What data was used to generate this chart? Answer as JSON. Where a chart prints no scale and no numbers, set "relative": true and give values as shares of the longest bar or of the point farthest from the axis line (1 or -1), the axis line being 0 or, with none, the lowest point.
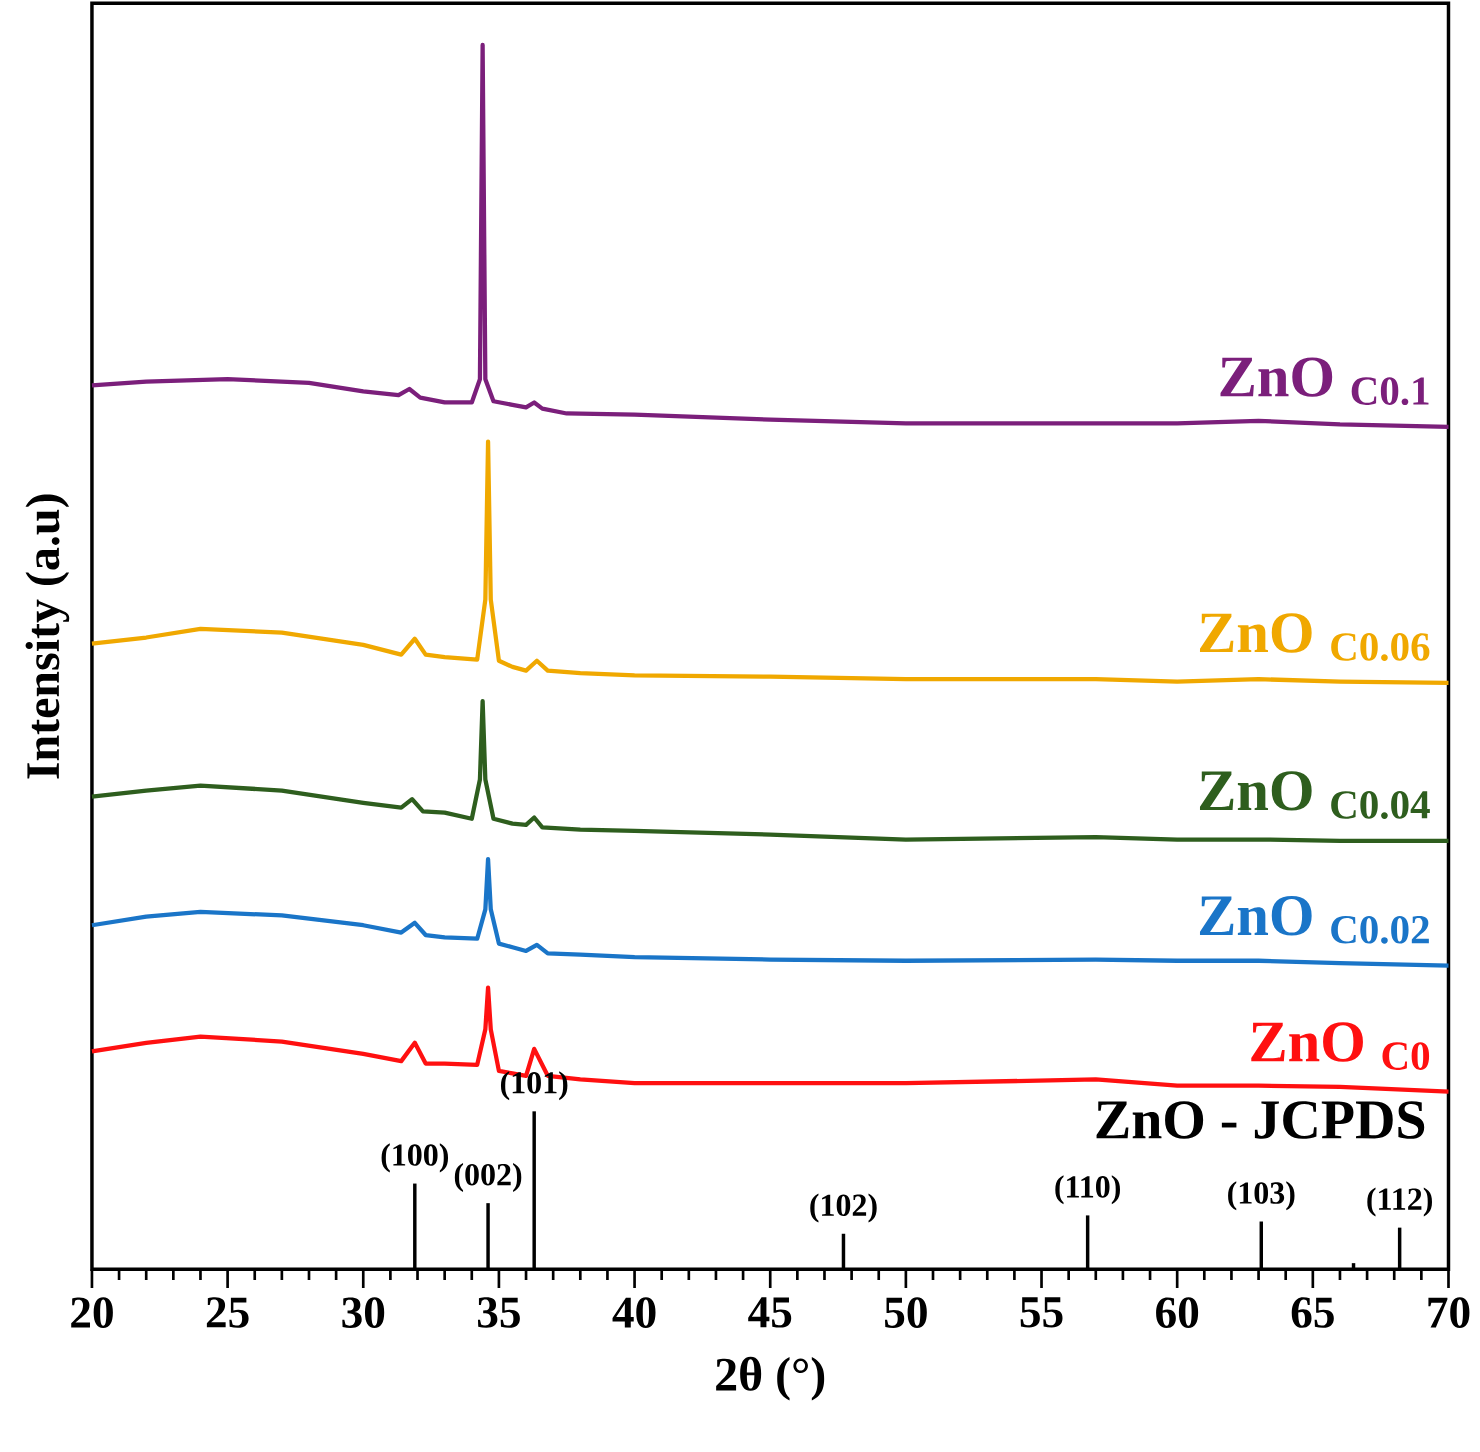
{
  "chart_data": {
    "type": "line",
    "relative": true,
    "xlabel": "2θ (°)",
    "ylabel": "Intensity (a.u)",
    "xlim": [
      20,
      70
    ],
    "xticks": [
      20,
      25,
      30,
      35,
      40,
      45,
      50,
      55,
      60,
      65,
      70
    ],
    "legend": false,
    "grid": false,
    "marker": "none",
    "line_style": "solid",
    "series": [
      {
        "name": "ZnO $_{C0.1}$",
        "color": "#7b1f7b",
        "x": [
          20,
          22,
          25,
          28,
          30,
          31.3,
          31.7,
          32.1,
          33,
          34.0,
          34.3,
          34.4,
          34.5,
          34.8,
          35.5,
          36.0,
          36.3,
          36.6,
          37.5,
          40,
          45,
          50,
          57,
          60,
          63,
          66,
          70
        ],
        "values": [
          0.722,
          0.725,
          0.727,
          0.724,
          0.717,
          0.714,
          0.719,
          0.712,
          0.708,
          0.708,
          0.727,
          1.0,
          0.727,
          0.709,
          0.706,
          0.704,
          0.708,
          0.703,
          0.699,
          0.698,
          0.694,
          0.691,
          0.691,
          0.691,
          0.693,
          0.69,
          0.688
        ]
      },
      {
        "name": "ZnO $_{C0.06}$",
        "color": "#f0a800",
        "x": [
          20,
          22,
          24,
          27,
          30,
          31.4,
          31.9,
          32.3,
          33,
          34.2,
          34.5,
          34.6,
          34.7,
          35.0,
          35.5,
          36.0,
          36.4,
          36.8,
          38,
          40,
          45,
          50,
          57,
          60,
          63,
          66,
          70
        ],
        "values": [
          0.511,
          0.516,
          0.523,
          0.52,
          0.51,
          0.502,
          0.515,
          0.502,
          0.5,
          0.498,
          0.547,
          0.676,
          0.547,
          0.497,
          0.492,
          0.489,
          0.497,
          0.489,
          0.487,
          0.485,
          0.484,
          0.482,
          0.482,
          0.48,
          0.482,
          0.48,
          0.479
        ]
      },
      {
        "name": "ZnO $_{C0.04}$",
        "color": "#2e5e1e",
        "x": [
          20,
          22,
          24,
          27,
          30,
          31.4,
          31.8,
          32.2,
          33,
          34.0,
          34.3,
          34.4,
          34.5,
          34.8,
          35.5,
          36.0,
          36.3,
          36.6,
          38,
          40,
          45,
          50,
          57,
          60,
          63,
          66,
          70
        ],
        "values": [
          0.386,
          0.391,
          0.395,
          0.391,
          0.381,
          0.377,
          0.384,
          0.374,
          0.373,
          0.368,
          0.4,
          0.464,
          0.4,
          0.368,
          0.364,
          0.363,
          0.369,
          0.361,
          0.359,
          0.358,
          0.355,
          0.351,
          0.353,
          0.351,
          0.351,
          0.35,
          0.35
        ]
      },
      {
        "name": "ZnO $_{C0.02}$",
        "color": "#1a75c8",
        "x": [
          20,
          22,
          24,
          27,
          30,
          31.4,
          31.9,
          32.3,
          33,
          34.2,
          34.5,
          34.6,
          34.7,
          35.0,
          35.5,
          36.0,
          36.4,
          36.8,
          38,
          40,
          45,
          50,
          57,
          60,
          63,
          66,
          70
        ],
        "values": [
          0.281,
          0.288,
          0.292,
          0.289,
          0.281,
          0.275,
          0.283,
          0.273,
          0.271,
          0.27,
          0.294,
          0.335,
          0.294,
          0.266,
          0.263,
          0.26,
          0.265,
          0.258,
          0.257,
          0.255,
          0.253,
          0.252,
          0.253,
          0.252,
          0.252,
          0.25,
          0.248
        ]
      },
      {
        "name": "ZnO $_{C0}$",
        "color": "#ff1010",
        "x": [
          20,
          22,
          24,
          27,
          30,
          31.4,
          31.9,
          32.3,
          33,
          34.2,
          34.5,
          34.6,
          34.7,
          35.0,
          35.5,
          36.0,
          36.3,
          36.8,
          38,
          40,
          45,
          50,
          57,
          60,
          63,
          66,
          70
        ],
        "values": [
          0.178,
          0.185,
          0.19,
          0.186,
          0.176,
          0.17,
          0.185,
          0.168,
          0.168,
          0.167,
          0.196,
          0.23,
          0.196,
          0.162,
          0.16,
          0.158,
          0.18,
          0.158,
          0.155,
          0.152,
          0.152,
          0.152,
          0.155,
          0.15,
          0.15,
          0.149,
          0.145
        ]
      },
      {
        "name": "ZnO  - JCPDS",
        "type": "bar",
        "color": "#000000",
        "x": [
          31.9,
          34.6,
          36.3,
          47.7,
          56.7,
          63.1,
          66.5,
          68.2
        ],
        "values": [
          0.07,
          0.054,
          0.129,
          0.029,
          0.044,
          0.039,
          0.005,
          0.034
        ]
      }
    ],
    "annotations": [
      {
        "text": "(100)",
        "x": 31.9,
        "y": 0.07
      },
      {
        "text": "(002)",
        "x": 34.6,
        "y": 0.054
      },
      {
        "text": "(101)",
        "x": 36.3,
        "y": 0.129
      },
      {
        "text": "(102)",
        "x": 47.7,
        "y": 0.029
      },
      {
        "text": "(110)",
        "x": 56.7,
        "y": 0.044
      },
      {
        "text": "(103)",
        "x": 63.1,
        "y": 0.039
      },
      {
        "text": "(112)",
        "x": 68.2,
        "y": 0.034
      }
    ]
  }
}
